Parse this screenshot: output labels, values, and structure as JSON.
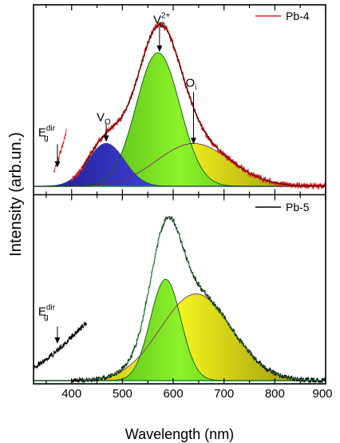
{
  "chart_data": {
    "type": "line",
    "xlabel": "Wavelength (nm)",
    "ylabel": "Intensity (arb.un.)",
    "xlim": [
      325,
      900
    ],
    "x_ticks": [
      400,
      500,
      600,
      700,
      800,
      900
    ],
    "colors": {
      "blue": "#3a3ad8",
      "green": "#74e61a",
      "yellow": "#f2ef12",
      "pink": "#d94fa8",
      "red": "#d42020"
    },
    "panels": [
      {
        "name": "Pb-4",
        "legend": "Pb-4",
        "legend_color": "#e02020",
        "ylim": [
          0,
          1.05
        ],
        "edge": {
          "label": "E",
          "sub": "g",
          "sup": "dir",
          "x_start": 365,
          "x_end": 390,
          "y_start": 0.09,
          "y_end": 0.33
        },
        "components": [
          {
            "label": "V",
            "sub": "O",
            "sup": "",
            "center": 468,
            "amplitude": 0.25,
            "sigma": 36,
            "color": "#3a3ad8"
          },
          {
            "label": "V",
            "sub": "O",
            "sup": "2+",
            "center": 570,
            "amplitude": 0.78,
            "sigma": 43,
            "color": "#74e61a"
          },
          {
            "label": "O",
            "sub": "i",
            "sup": "",
            "center": 640,
            "amplitude": 0.25,
            "sigma": 72,
            "color": "#f2ef12"
          }
        ]
      },
      {
        "name": "Pb-5",
        "legend": "Pb-5",
        "legend_color": "#000000",
        "ylim": [
          0,
          1.12
        ],
        "edge": {
          "label": "E",
          "sub": "g",
          "sup": "dir",
          "x_start": 325,
          "x_end": 430,
          "y_start": 0.08,
          "y_end": 0.36
        },
        "components": [
          {
            "center": 585,
            "amplitude": 0.62,
            "sigma": 30,
            "color": "#74e61a"
          },
          {
            "center": 645,
            "amplitude": 0.53,
            "sigma": 70,
            "color": "#f2ef12"
          }
        ]
      }
    ]
  }
}
